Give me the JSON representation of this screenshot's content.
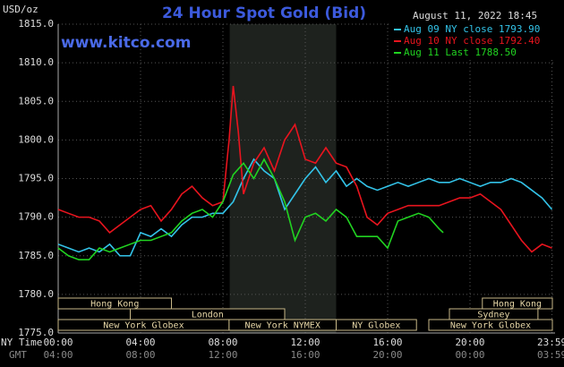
{
  "chart_data": {
    "type": "line",
    "title": "24 Hour Spot Gold (Bid)",
    "timestamp": "August 11, 2022 18:45",
    "watermark": "www.kitco.com",
    "y_label": "USD/oz",
    "x_row_labels": [
      "NY Time",
      "GMT"
    ],
    "xlim": [
      0,
      24
    ],
    "xticks": [
      {
        "value": 0,
        "label": "00:00"
      },
      {
        "value": 4,
        "label": "04:00"
      },
      {
        "value": 8,
        "label": "08:00"
      },
      {
        "value": 12,
        "label": "12:00"
      },
      {
        "value": 16,
        "label": "16:00"
      },
      {
        "value": 20,
        "label": "20:00"
      },
      {
        "value": 23.98,
        "label": "23:59"
      }
    ],
    "gmt_tick_labels": [
      "04:00",
      "08:00",
      "12:00",
      "16:00",
      "20:00",
      "00:00",
      "03:59"
    ],
    "ylim": [
      1775,
      1815
    ],
    "yticks": [
      {
        "value": 1775,
        "label": "1775.0"
      },
      {
        "value": 1780,
        "label": "1780.0"
      },
      {
        "value": 1785,
        "label": "1785.0"
      },
      {
        "value": 1790,
        "label": "1790.0"
      },
      {
        "value": 1795,
        "label": "1795.0"
      },
      {
        "value": 1800,
        "label": "1800.0"
      },
      {
        "value": 1805,
        "label": "1805.0"
      },
      {
        "value": 1810,
        "label": "1810.0"
      },
      {
        "value": 1815,
        "label": "1815.0"
      }
    ],
    "grid": true,
    "shaded_range": [
      8.33,
      13.5
    ],
    "series": [
      {
        "name": "Aug 09 NY close 1793.90",
        "color": "#33c3e8",
        "x": [
          0,
          0.5,
          1,
          1.5,
          2,
          2.5,
          3,
          3.5,
          4,
          4.5,
          5,
          5.5,
          6,
          6.5,
          7,
          7.5,
          8,
          8.5,
          9,
          9.5,
          10,
          10.5,
          11,
          11.5,
          12,
          12.5,
          13,
          13.5,
          14,
          14.5,
          15,
          15.5,
          16,
          16.5,
          17,
          17.5,
          18,
          18.5,
          19,
          19.5,
          20,
          20.5,
          21,
          21.5,
          22,
          22.5,
          23,
          23.5,
          23.98
        ],
        "values": [
          1786.5,
          1786,
          1785.5,
          1786,
          1785.5,
          1786.5,
          1785,
          1785,
          1788,
          1787.5,
          1788.5,
          1787.5,
          1789,
          1790,
          1790,
          1790.5,
          1790.5,
          1792,
          1795,
          1797.5,
          1796,
          1795,
          1791,
          1793,
          1795,
          1796.5,
          1794.5,
          1796,
          1794,
          1795,
          1794,
          1793.5,
          1794,
          1794.5,
          1794,
          1794.5,
          1795,
          1794.5,
          1794.5,
          1795,
          1794.5,
          1794,
          1794.5,
          1794.5,
          1795,
          1794.5,
          1793.5,
          1792.5,
          1791
        ]
      },
      {
        "name": "Aug 10 NY close 1792.40",
        "color": "#e8141e",
        "x": [
          0,
          0.5,
          1,
          1.5,
          2,
          2.5,
          3,
          3.5,
          4,
          4.5,
          5,
          5.5,
          6,
          6.5,
          7,
          7.5,
          8,
          8.3,
          8.5,
          8.75,
          9,
          9.5,
          10,
          10.5,
          11,
          11.5,
          12,
          12.5,
          13,
          13.5,
          14,
          14.5,
          15,
          15.5,
          16,
          16.5,
          17,
          17.5,
          18,
          18.5,
          19,
          19.5,
          20,
          20.5,
          21,
          21.5,
          22,
          22.5,
          23,
          23.5,
          23.98
        ],
        "values": [
          1791,
          1790.5,
          1790,
          1790,
          1789.5,
          1788,
          1789,
          1790,
          1791,
          1791.5,
          1789.5,
          1791,
          1793,
          1794,
          1792.5,
          1791.5,
          1792,
          1800,
          1807,
          1801,
          1793,
          1797,
          1799,
          1796,
          1800,
          1802,
          1797.5,
          1797,
          1799,
          1797,
          1796.5,
          1794,
          1790,
          1789,
          1790.5,
          1791,
          1791.5,
          1791.5,
          1791.5,
          1791.5,
          1792,
          1792.5,
          1792.5,
          1793,
          1792,
          1791,
          1789,
          1787,
          1785.5,
          1786.5,
          1786
        ]
      },
      {
        "name": "Aug 11 Last 1788.50",
        "color": "#21d321",
        "x": [
          0,
          0.5,
          1,
          1.5,
          2,
          2.5,
          3,
          3.5,
          4,
          4.5,
          5,
          5.5,
          6,
          6.5,
          7,
          7.5,
          8,
          8.5,
          9,
          9.5,
          10,
          10.5,
          11,
          11.5,
          12,
          12.5,
          13,
          13.5,
          14,
          14.5,
          15,
          15.5,
          16,
          16.5,
          17,
          17.5,
          18,
          18.5,
          18.7
        ],
        "values": [
          1786,
          1785,
          1784.5,
          1784.5,
          1786,
          1785.5,
          1786,
          1786.5,
          1787,
          1787,
          1787.5,
          1788,
          1789.5,
          1790.5,
          1791,
          1790,
          1792,
          1795.5,
          1797,
          1795,
          1797.5,
          1795,
          1792,
          1787,
          1790,
          1790.5,
          1789.5,
          1791,
          1790,
          1787.5,
          1787.5,
          1787.5,
          1786,
          1789.5,
          1790,
          1790.5,
          1790,
          1788.5,
          1788
        ]
      }
    ],
    "sessions": [
      [
        {
          "label": "Hong Kong",
          "start": 0,
          "end": 5.5
        },
        {
          "label": "Hong Kong",
          "start": 20.6,
          "end": 24
        }
      ],
      [
        {
          "label": "London",
          "start": 3.5,
          "end": 11
        },
        {
          "label": "Sydney",
          "start": 19,
          "end": 23.3
        }
      ],
      [
        {
          "label": "New York Globex",
          "start": 0,
          "end": 8.3
        },
        {
          "label": "New York NYMEX",
          "start": 8.3,
          "end": 13.5
        },
        {
          "label": "NY Globex",
          "start": 13.5,
          "end": 17.4
        },
        {
          "label": "New York Globex",
          "start": 18,
          "end": 24
        }
      ]
    ]
  }
}
